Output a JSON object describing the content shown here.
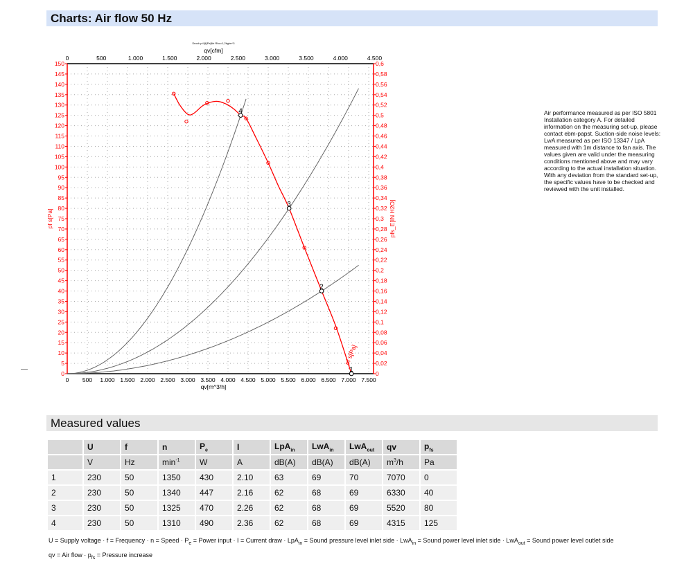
{
  "header": {
    "title": "Charts: Air flow 50 Hz"
  },
  "chart_data": {
    "type": "line",
    "subtitle": "Druck p f@[Pa]für Rho=1,2kg/m^3",
    "xlabel": "qv[m^3/h]",
    "x2label": "qv[cfm]",
    "ylabel": "pf s[Pa]",
    "y2label": "pfs_E[IN H2O]",
    "xlim": [
      0,
      7620
    ],
    "ylim": [
      0,
      150
    ],
    "y2lim": [
      0,
      0.6
    ],
    "xticks": [
      "0",
      "500",
      "1.000",
      "1.500",
      "2.000",
      "2.500",
      "3.000",
      "3.500",
      "4.000",
      "4.500",
      "5.000",
      "5.500",
      "6.000",
      "6.500",
      "7.000",
      "7.500"
    ],
    "x2ticks": [
      "0",
      "500",
      "1.000",
      "1.500",
      "2.000",
      "2.500",
      "3.000",
      "3.500",
      "4.000",
      "4.500"
    ],
    "yticks": [
      "0",
      "5",
      "10",
      "15",
      "20",
      "25",
      "30",
      "35",
      "40",
      "45",
      "50",
      "55",
      "60",
      "65",
      "70",
      "75",
      "80",
      "85",
      "90",
      "95",
      "100",
      "105",
      "110",
      "115",
      "120",
      "125",
      "130",
      "135",
      "140",
      "145",
      "150"
    ],
    "y2ticks": [
      "0",
      "0,02",
      "0,04",
      "0,06",
      "0,08",
      "0,1",
      "0,12",
      "0,14",
      "0,16",
      "0,18",
      "0,2",
      "0,22",
      "0,24",
      "0,26",
      "0,28",
      "0,3",
      "0,32",
      "0,34",
      "0,36",
      "0,38",
      "0,4",
      "0,42",
      "0,44",
      "0,46",
      "0,48",
      "0,5",
      "0,52",
      "0,54",
      "0,56",
      "0,58",
      "0,6"
    ],
    "grid": true,
    "fan_curve": {
      "name": "pf s[Pa]",
      "color": "#ff0000",
      "x": [
        2650,
        2800,
        3000,
        3150,
        3400,
        3700,
        3950,
        4150,
        4315,
        4450,
        4700,
        5000,
        5250,
        5520,
        5900,
        6330,
        6700,
        7070
      ],
      "y": [
        135.5,
        130,
        125.5,
        126,
        130,
        131.8,
        130.5,
        128,
        125,
        123.5,
        114,
        102,
        91,
        80,
        61,
        40,
        22,
        0
      ],
      "markers_x": [
        2650,
        2965,
        3480,
        4000,
        4450,
        5000,
        5900,
        6680
      ],
      "markers_y": [
        135.5,
        122,
        131,
        132,
        123.5,
        102,
        61,
        22
      ]
    },
    "system_curves": [
      {
        "name": "2",
        "k_point": [
          6330,
          40
        ],
        "x_end": 7250
      },
      {
        "name": "3",
        "k_point": [
          5520,
          80
        ],
        "x_end": 7260
      },
      {
        "name": "4",
        "k_point": [
          4315,
          125
        ],
        "x_end": 4480
      }
    ],
    "operating_points": [
      {
        "label": "1",
        "x": 7070,
        "y": 0
      },
      {
        "label": "2",
        "x": 6330,
        "y": 40
      },
      {
        "label": "3",
        "x": 5520,
        "y": 80
      },
      {
        "label": "4",
        "x": 4315,
        "y": 125
      }
    ]
  },
  "note": "Air performance measured as per ISO 5801 Installation category A. For detailed information on the measuring set-up, please contact ebm-papst. Suction-side noise levels: LwA measured as per ISO 13347 / LpA measured with 1m distance to fan axis. The values given are valid under the measuring conditions mentioned above and may vary according to the actual installation situation. With any deviation from the standard set-up, the specific values have to be checked and reviewed with the unit installed.",
  "measured": {
    "title": "Measured values",
    "headers": [
      [
        "U",
        ""
      ],
      [
        "f",
        ""
      ],
      [
        "n",
        ""
      ],
      [
        "P",
        "e"
      ],
      [
        "I",
        ""
      ],
      [
        "LpA",
        "in"
      ],
      [
        "LwA",
        "in"
      ],
      [
        "LwA",
        "out"
      ],
      [
        "qv",
        ""
      ],
      [
        "p",
        "fs"
      ]
    ],
    "units": [
      "V",
      "Hz",
      "min",
      "W",
      "A",
      "dB(A)",
      "dB(A)",
      "dB(A)",
      "m",
      "Pa"
    ],
    "unit_sup": {
      "n": "-1",
      "qv": "3"
    },
    "unit_qv_tail": "/h",
    "rows": [
      [
        "1",
        "230",
        "50",
        "1350",
        "430",
        "2.10",
        "63",
        "69",
        "70",
        "7070",
        "0"
      ],
      [
        "2",
        "230",
        "50",
        "1340",
        "447",
        "2.16",
        "62",
        "68",
        "69",
        "6330",
        "40"
      ],
      [
        "3",
        "230",
        "50",
        "1325",
        "470",
        "2.26",
        "62",
        "68",
        "69",
        "5520",
        "80"
      ],
      [
        "4",
        "230",
        "50",
        "1310",
        "490",
        "2.36",
        "62",
        "68",
        "69",
        "4315",
        "125"
      ]
    ],
    "legend1": "U = Supply voltage · f = Frequency · n = Speed · P",
    "legend1b": "e",
    "legend1c": " = Power input · I = Current draw · LpA",
    "legend1d": "in",
    "legend1e": " = Sound pressure level inlet side · LwA",
    "legend1f": "in",
    "legend1g": " = Sound power level inlet side · LwA",
    "legend1h": "out",
    "legend1i": " = Sound power level outlet side",
    "legend2": "qv = Air flow · p",
    "legend2b": "fs",
    "legend2c": " = Pressure increase"
  }
}
